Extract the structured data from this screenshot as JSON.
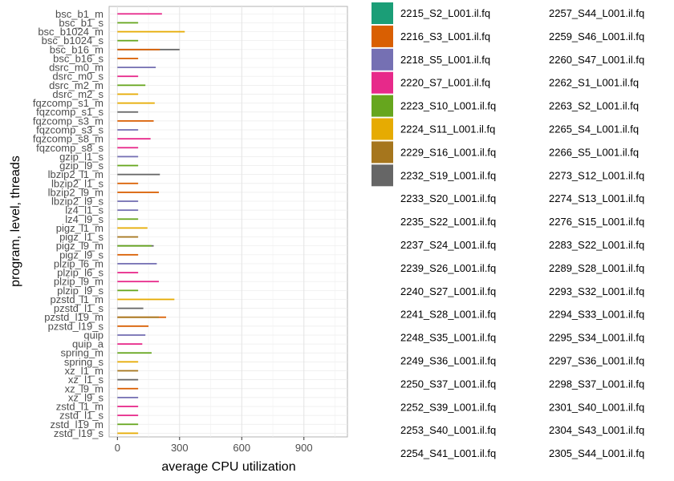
{
  "chart_data": {
    "type": "bar",
    "orientation": "horizontal",
    "xlabel": "average CPU utilization",
    "ylabel": "program, level, threads",
    "xlim": [
      -40,
      1110
    ],
    "xticks": [
      0,
      300,
      600,
      900
    ],
    "grid": true,
    "legend_placement": "right",
    "categories": [
      "bsc_b1_m",
      "bsc_b1_s",
      "bsc_b1024_m",
      "bsc_b1024_s",
      "bsc_b16_m",
      "bsc_b16_s",
      "dsrc_m0_m",
      "dsrc_m0_s",
      "dsrc_m2_m",
      "dsrc_m2_s",
      "fqzcomp_s1_m",
      "fqzcomp_s1_s",
      "fqzcomp_s3_m",
      "fqzcomp_s3_s",
      "fqzcomp_s8_m",
      "fqzcomp_s8_s",
      "gzip_l1_s",
      "gzip_l9_s",
      "lbzip2_l1_m",
      "lbzip2_l1_s",
      "lbzip2_l9_m",
      "lbzip2_l9_s",
      "lz4_l1_s",
      "lz4_l9_s",
      "pigz_l1_m",
      "pigz_l1_s",
      "pigz_l9_m",
      "pigz_l9_s",
      "plzip_l6_m",
      "plzip_l6_s",
      "plzip_l9_m",
      "plzip_l9_s",
      "pzstd_l1_m",
      "pzstd_l1_s",
      "pzstd_l19_m",
      "pzstd_l19_s",
      "quip",
      "quip_a",
      "spring_m",
      "spring_s",
      "xz_l1_m",
      "xz_l1_s",
      "xz_l9_m",
      "xz_l9_s",
      "zstd_l1_m",
      "zstd_l1_s",
      "zstd_l19_m",
      "zstd_l19_s"
    ],
    "bars": [
      {
        "category": "bsc_b1_m",
        "value": 215,
        "color_index": 3
      },
      {
        "category": "bsc_b1_s",
        "value": 100,
        "color_index": 4
      },
      {
        "category": "bsc_b1024_m",
        "value": 325,
        "color_index": 5
      },
      {
        "category": "bsc_b1024_s",
        "value": 100,
        "color_index": 4
      },
      {
        "category": "bsc_b16_m",
        "value": 300,
        "color_index": 7
      },
      {
        "category": "bsc_b16_m",
        "value": 205,
        "color_index": 1
      },
      {
        "category": "bsc_b16_s",
        "value": 100,
        "color_index": 1
      },
      {
        "category": "dsrc_m0_m",
        "value": 185,
        "color_index": 2
      },
      {
        "category": "dsrc_m0_s",
        "value": 100,
        "color_index": 3
      },
      {
        "category": "dsrc_m2_m",
        "value": 135,
        "color_index": 4
      },
      {
        "category": "dsrc_m2_s",
        "value": 100,
        "color_index": 5
      },
      {
        "category": "fqzcomp_s1_m",
        "value": 180,
        "color_index": 5
      },
      {
        "category": "fqzcomp_s1_s",
        "value": 100,
        "color_index": 7
      },
      {
        "category": "fqzcomp_s3_m",
        "value": 175,
        "color_index": 1
      },
      {
        "category": "fqzcomp_s3_s",
        "value": 100,
        "color_index": 2
      },
      {
        "category": "fqzcomp_s8_m",
        "value": 160,
        "color_index": 3
      },
      {
        "category": "fqzcomp_s8_s",
        "value": 100,
        "color_index": 3
      },
      {
        "category": "gzip_l1_s",
        "value": 100,
        "color_index": 2
      },
      {
        "category": "gzip_l9_s",
        "value": 100,
        "color_index": 4
      },
      {
        "category": "lbzip2_l1_m",
        "value": 205,
        "color_index": 7
      },
      {
        "category": "lbzip2_l1_s",
        "value": 100,
        "color_index": 1
      },
      {
        "category": "lbzip2_l9_m",
        "value": 200,
        "color_index": 1
      },
      {
        "category": "lbzip2_l9_s",
        "value": 100,
        "color_index": 2
      },
      {
        "category": "lz4_l1_s",
        "value": 100,
        "color_index": 2
      },
      {
        "category": "lz4_l9_s",
        "value": 100,
        "color_index": 4
      },
      {
        "category": "pigz_l1_m",
        "value": 145,
        "color_index": 5
      },
      {
        "category": "pigz_l1_s",
        "value": 100,
        "color_index": 6
      },
      {
        "category": "pigz_l9_m",
        "value": 175,
        "color_index": 7
      },
      {
        "category": "pigz_l9_m",
        "value": 165,
        "color_index": 4
      },
      {
        "category": "pigz_l9_s",
        "value": 100,
        "color_index": 1
      },
      {
        "category": "plzip_l6_m",
        "value": 190,
        "color_index": 2
      },
      {
        "category": "plzip_l6_s",
        "value": 100,
        "color_index": 3
      },
      {
        "category": "plzip_l9_m",
        "value": 200,
        "color_index": 3
      },
      {
        "category": "plzip_l9_s",
        "value": 100,
        "color_index": 4
      },
      {
        "category": "pzstd_l1_m",
        "value": 275,
        "color_index": 5
      },
      {
        "category": "pzstd_l1_s",
        "value": 125,
        "color_index": 7
      },
      {
        "category": "pzstd_l19_m",
        "value": 235,
        "color_index": 1
      },
      {
        "category": "pzstd_l19_m",
        "value": 200,
        "color_index": 6
      },
      {
        "category": "pzstd_l19_s",
        "value": 150,
        "color_index": 1
      },
      {
        "category": "quip",
        "value": 135,
        "color_index": 2
      },
      {
        "category": "quip_a",
        "value": 120,
        "color_index": 3
      },
      {
        "category": "spring_m",
        "value": 165,
        "color_index": 4
      },
      {
        "category": "spring_s",
        "value": 100,
        "color_index": 5
      },
      {
        "category": "xz_l1_m",
        "value": 100,
        "color_index": 6
      },
      {
        "category": "xz_l1_s",
        "value": 100,
        "color_index": 7
      },
      {
        "category": "xz_l9_m",
        "value": 100,
        "color_index": 1
      },
      {
        "category": "xz_l9_s",
        "value": 100,
        "color_index": 2
      },
      {
        "category": "zstd_l1_m",
        "value": 100,
        "color_index": 3
      },
      {
        "category": "zstd_l1_s",
        "value": 100,
        "color_index": 3
      },
      {
        "category": "zstd_l19_m",
        "value": 100,
        "color_index": 4
      },
      {
        "category": "zstd_l19_s",
        "value": 100,
        "color_index": 5
      }
    ],
    "palette": [
      "#1b9e77",
      "#d95f02",
      "#7570b3",
      "#e7298a",
      "#66a61e",
      "#e6ab02",
      "#a6761d",
      "#666666"
    ],
    "legend": {
      "columns": [
        [
          "2215_S2_L001.il.fq",
          "2216_S3_L001.il.fq",
          "2218_S5_L001.il.fq",
          "2220_S7_L001.il.fq",
          "2223_S10_L001.il.fq",
          "2224_S11_L001.il.fq",
          "2229_S16_L001.il.fq",
          "2232_S19_L001.il.fq",
          "2233_S20_L001.il.fq",
          "2235_S22_L001.il.fq",
          "2237_S24_L001.il.fq",
          "2239_S26_L001.il.fq",
          "2240_S27_L001.il.fq",
          "2241_S28_L001.il.fq",
          "2248_S35_L001.il.fq",
          "2249_S36_L001.il.fq",
          "2250_S37_L001.il.fq",
          "2252_S39_L001.il.fq",
          "2253_S40_L001.il.fq",
          "2254_S41_L001.il.fq"
        ],
        [
          "2257_S44_L001.il.fq",
          "2259_S46_L001.il.fq",
          "2260_S47_L001.il.fq",
          "2262_S1_L001.il.fq",
          "2263_S2_L001.il.fq",
          "2265_S4_L001.il.fq",
          "2266_S5_L001.il.fq",
          "2273_S12_L001.il.fq",
          "2274_S13_L001.il.fq",
          "2276_S15_L001.il.fq",
          "2283_S22_L001.il.fq",
          "2289_S28_L001.il.fq",
          "2293_S32_L001.il.fq",
          "2294_S33_L001.il.fq",
          "2295_S34_L001.il.fq",
          "2297_S36_L001.il.fq",
          "2298_S37_L001.il.fq",
          "2301_S40_L001.il.fq",
          "2304_S43_L001.il.fq",
          "2305_S44_L001.il.fq"
        ]
      ],
      "swatch_count": 8
    }
  }
}
